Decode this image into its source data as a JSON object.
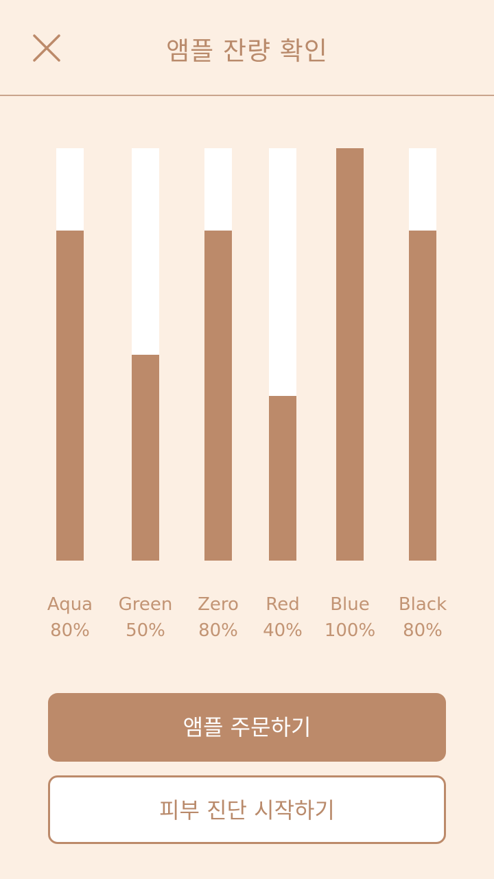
{
  "header": {
    "title": "앰플 잔량 확인",
    "close_icon": "close-icon"
  },
  "colors": {
    "background": "#FCEFE3",
    "accent": "#BC8A6A",
    "track": "#FFFFFF",
    "text": "#C29474"
  },
  "ampoules": [
    {
      "name": "Aqua",
      "percent_label": "80%",
      "level": 80
    },
    {
      "name": "Green",
      "percent_label": "50%",
      "level": 50
    },
    {
      "name": "Zero",
      "percent_label": "80%",
      "level": 80
    },
    {
      "name": "Red",
      "percent_label": "40%",
      "level": 40
    },
    {
      "name": "Blue",
      "percent_label": "100%",
      "level": 100
    },
    {
      "name": "Black",
      "percent_label": "80%",
      "level": 80
    }
  ],
  "buttons": {
    "order_label": "앰플 주문하기",
    "diagnosis_label": "피부 진단 시작하기"
  }
}
